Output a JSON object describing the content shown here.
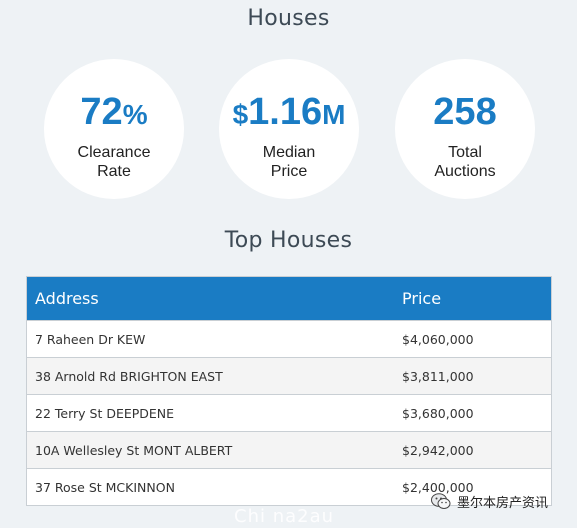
{
  "houses_title": "Houses",
  "stats": {
    "clearance": {
      "value": "72",
      "suffix": "%",
      "label_line1": "Clearance",
      "label_line2": "Rate"
    },
    "median": {
      "prefix": "$",
      "value": "1.16",
      "suffix": "M",
      "label_line1": "Median",
      "label_line2": "Price"
    },
    "auctions": {
      "value": "258",
      "label_line1": "Total",
      "label_line2": "Auctions"
    }
  },
  "top_title": "Top Houses",
  "table": {
    "headers": {
      "address": "Address",
      "price": "Price"
    },
    "rows": [
      {
        "address": "7 Raheen Dr KEW",
        "price": "$4,060,000"
      },
      {
        "address": "38 Arnold Rd BRIGHTON EAST",
        "price": "$3,811,000"
      },
      {
        "address": "22 Terry St DEEPDENE",
        "price": "$3,680,000"
      },
      {
        "address": "10A Wellesley St MONT ALBERT",
        "price": "$2,942,000"
      },
      {
        "address": "37 Rose St MCKINNON",
        "price": "$2,400,000"
      }
    ]
  },
  "watermark": {
    "cn": "墨尔本房产资讯",
    "en": "Chi na2au",
    "icon": "wechat-icon"
  },
  "colors": {
    "accent": "#1a7cc4",
    "background": "#eef2f5"
  }
}
